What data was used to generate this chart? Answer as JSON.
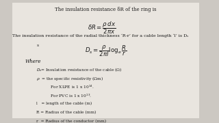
{
  "bg_color": "#ccc8c2",
  "panel_color": "#e9e5df",
  "text_color": "#1a1a1a",
  "title1": "The insulation resistance δR of the ring is",
  "eq1": "$\\delta R = \\dfrac{\\rho\\,dx}{2\\pi x}$",
  "title2": "The insulation resistance of the radial thickness ‘R-r’ for a cable length ‘l’ is Dₛ",
  "eq2": "$D_s = \\dfrac{\\rho}{2\\pi l}\\log_e\\dfrac{R}{r}$",
  "where": "Where",
  "lines": [
    "$D_s$= Insulation resistance of the cable (Ω)",
    "$\\rho$  = the specific resistivity (Ωm)",
    "           For XLPE is 1 x 10$^{14}$.",
    "           For PVC is 1 x 10$^{13}$.",
    "l   = length of the cable (m)",
    "R = Radius of the cable (mm)",
    "r  = Radius of the conductor (mm)"
  ]
}
